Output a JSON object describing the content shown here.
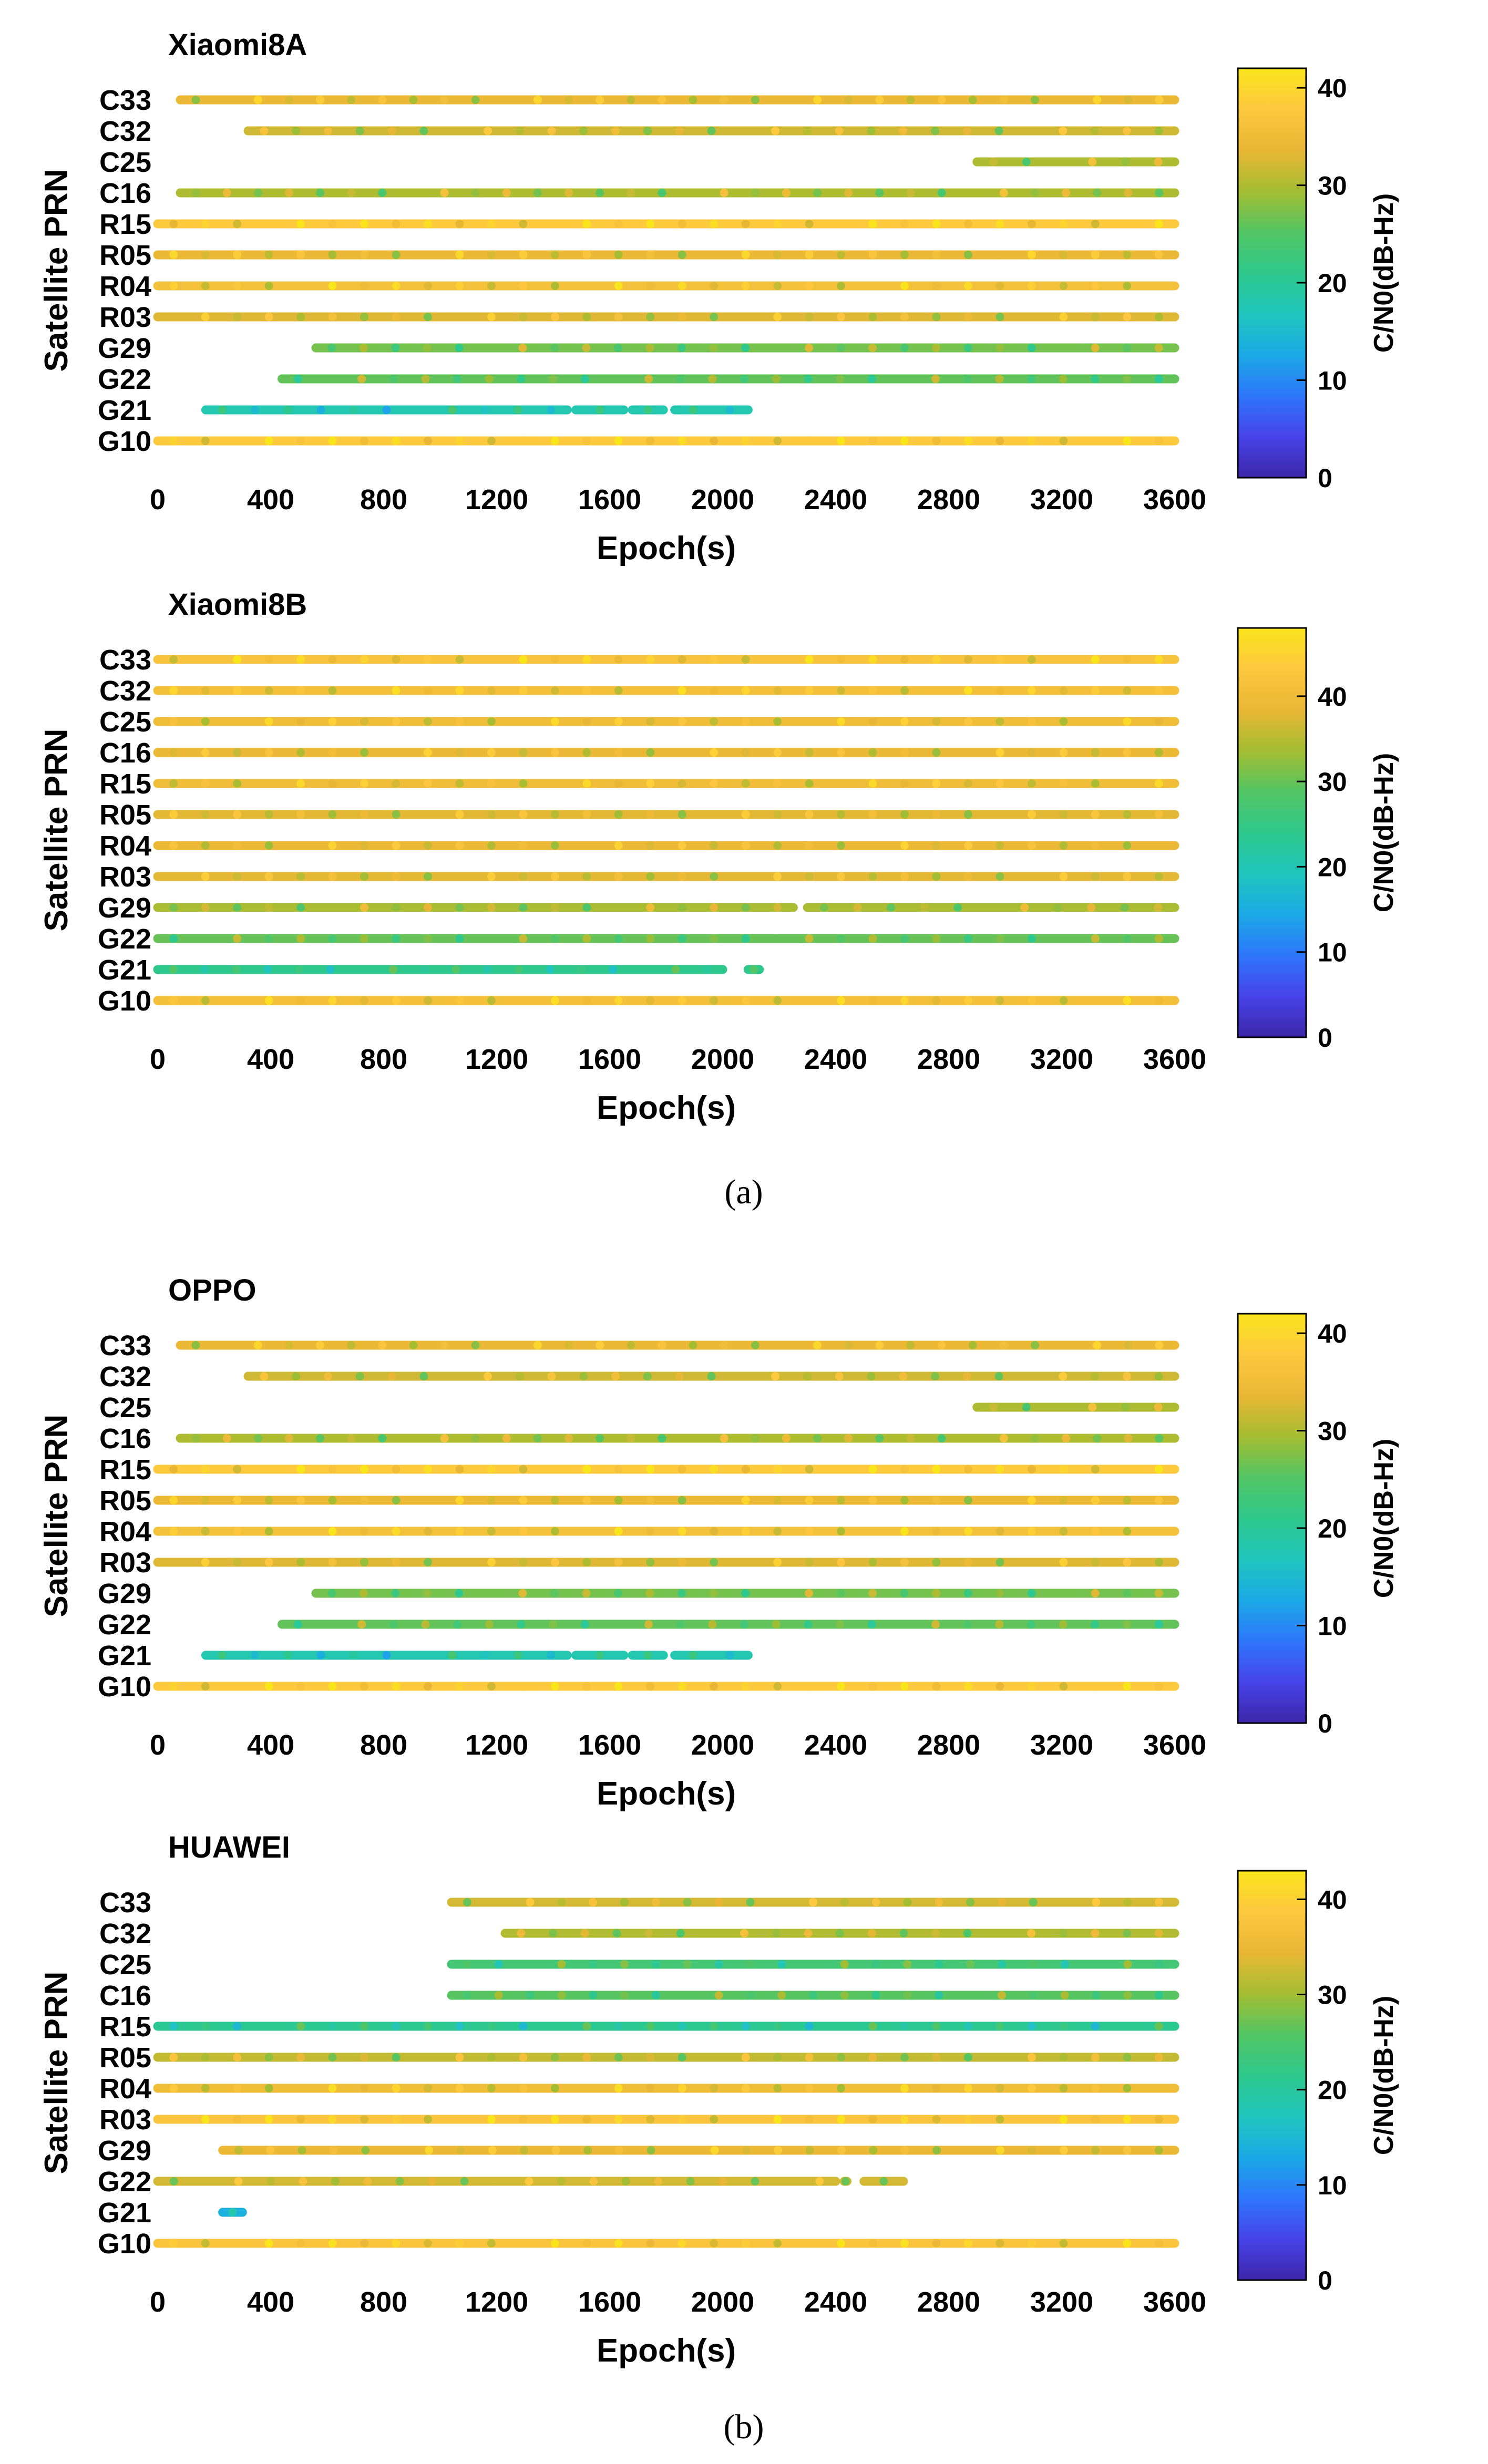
{
  "figure": {
    "captions": [
      "(a)",
      "(b)"
    ],
    "caption_letters": [
      "a",
      "b"
    ]
  },
  "colormap": [
    "#3d26a8",
    "#4743e9",
    "#2e76fa",
    "#1ba9e6",
    "#20c6bd",
    "#2ec88c",
    "#53c564",
    "#a4bd32",
    "#e9b735",
    "#fdc83f",
    "#f9e51c"
  ],
  "chart_data": [
    {
      "type": "scatter",
      "title": "Xiaomi8A",
      "xlabel": "Epoch(s)",
      "ylabel": "Satellite PRN",
      "colorbar_label": "C/N0(dB-Hz)",
      "xlim": [
        0,
        3600
      ],
      "xticks": [
        0,
        400,
        800,
        1200,
        1600,
        2000,
        2400,
        2800,
        3200,
        3600
      ],
      "cb_range": [
        0,
        42
      ],
      "cb_ticks": [
        0,
        10,
        20,
        30,
        40
      ],
      "categories": [
        "G10",
        "G21",
        "G22",
        "G29",
        "R03",
        "R04",
        "R05",
        "R15",
        "C16",
        "C25",
        "C32",
        "C33"
      ],
      "series": [
        {
          "name": "C33",
          "segments": [
            [
              80,
              3600
            ]
          ],
          "cn0": 34
        },
        {
          "name": "C32",
          "segments": [
            [
              320,
              3600
            ]
          ],
          "cn0": 32
        },
        {
          "name": "C25",
          "segments": [
            [
              2900,
              3600
            ]
          ],
          "cn0": 30
        },
        {
          "name": "C16",
          "segments": [
            [
              80,
              3600
            ]
          ],
          "cn0": 30
        },
        {
          "name": "R15",
          "segments": [
            [
              0,
              3600
            ]
          ],
          "cn0": 38
        },
        {
          "name": "R05",
          "segments": [
            [
              0,
              3600
            ]
          ],
          "cn0": 34
        },
        {
          "name": "R04",
          "segments": [
            [
              0,
              3600
            ]
          ],
          "cn0": 36
        },
        {
          "name": "R03",
          "segments": [
            [
              0,
              3600
            ]
          ],
          "cn0": 33
        },
        {
          "name": "G29",
          "segments": [
            [
              560,
              3600
            ]
          ],
          "cn0": 27
        },
        {
          "name": "G22",
          "segments": [
            [
              440,
              3600
            ]
          ],
          "cn0": 26
        },
        {
          "name": "G21",
          "segments": [
            [
              170,
              1450
            ],
            [
              1480,
              1650
            ],
            [
              1680,
              1790
            ],
            [
              1830,
              2090
            ]
          ],
          "cn0": 18
        },
        {
          "name": "G10",
          "segments": [
            [
              0,
              3600
            ]
          ],
          "cn0": 38
        }
      ]
    },
    {
      "type": "scatter",
      "title": "Xiaomi8B",
      "xlabel": "Epoch(s)",
      "ylabel": "Satellite PRN",
      "colorbar_label": "C/N0(dB-Hz)",
      "xlim": [
        0,
        3600
      ],
      "xticks": [
        0,
        400,
        800,
        1200,
        1600,
        2000,
        2400,
        2800,
        3200,
        3600
      ],
      "cb_range": [
        0,
        48
      ],
      "cb_ticks": [
        0,
        10,
        20,
        30,
        40
      ],
      "categories": [
        "G10",
        "G21",
        "G22",
        "G29",
        "R03",
        "R04",
        "R05",
        "R15",
        "C16",
        "C25",
        "C32",
        "C33"
      ],
      "series": [
        {
          "name": "C33",
          "segments": [
            [
              0,
              3600
            ]
          ],
          "cn0": 42
        },
        {
          "name": "C32",
          "segments": [
            [
              0,
              3600
            ]
          ],
          "cn0": 41
        },
        {
          "name": "C25",
          "segments": [
            [
              0,
              3600
            ]
          ],
          "cn0": 40
        },
        {
          "name": "C16",
          "segments": [
            [
              0,
              3600
            ]
          ],
          "cn0": 39
        },
        {
          "name": "R15",
          "segments": [
            [
              0,
              3600
            ]
          ],
          "cn0": 40
        },
        {
          "name": "R05",
          "segments": [
            [
              0,
              3600
            ]
          ],
          "cn0": 38
        },
        {
          "name": "R04",
          "segments": [
            [
              0,
              3600
            ]
          ],
          "cn0": 39
        },
        {
          "name": "R03",
          "segments": [
            [
              0,
              3600
            ]
          ],
          "cn0": 38
        },
        {
          "name": "G29",
          "segments": [
            [
              0,
              2250
            ],
            [
              2300,
              3600
            ]
          ],
          "cn0": 34
        },
        {
          "name": "G22",
          "segments": [
            [
              0,
              3600
            ]
          ],
          "cn0": 30
        },
        {
          "name": "G21",
          "segments": [
            [
              0,
              2000
            ],
            [
              2090,
              2130
            ]
          ],
          "cn0": 24
        },
        {
          "name": "G10",
          "segments": [
            [
              0,
              3600
            ]
          ],
          "cn0": 41
        }
      ]
    },
    {
      "type": "scatter",
      "title": "OPPO",
      "xlabel": "Epoch(s)",
      "ylabel": "Satellite PRN",
      "colorbar_label": "C/N0(dB-Hz)",
      "xlim": [
        0,
        3600
      ],
      "xticks": [
        0,
        400,
        800,
        1200,
        1600,
        2000,
        2400,
        2800,
        3200,
        3600
      ],
      "cb_range": [
        0,
        42
      ],
      "cb_ticks": [
        0,
        10,
        20,
        30,
        40
      ],
      "categories": [
        "G10",
        "G21",
        "G22",
        "G29",
        "R03",
        "R04",
        "R05",
        "R15",
        "C16",
        "C25",
        "C32",
        "C33"
      ],
      "series": [
        {
          "name": "C33",
          "segments": [
            [
              80,
              3600
            ]
          ],
          "cn0": 34
        },
        {
          "name": "C32",
          "segments": [
            [
              320,
              3600
            ]
          ],
          "cn0": 32
        },
        {
          "name": "C25",
          "segments": [
            [
              2900,
              3600
            ]
          ],
          "cn0": 30
        },
        {
          "name": "C16",
          "segments": [
            [
              80,
              3600
            ]
          ],
          "cn0": 30
        },
        {
          "name": "R15",
          "segments": [
            [
              0,
              3600
            ]
          ],
          "cn0": 38
        },
        {
          "name": "R05",
          "segments": [
            [
              0,
              3600
            ]
          ],
          "cn0": 34
        },
        {
          "name": "R04",
          "segments": [
            [
              0,
              3600
            ]
          ],
          "cn0": 36
        },
        {
          "name": "R03",
          "segments": [
            [
              0,
              3600
            ]
          ],
          "cn0": 33
        },
        {
          "name": "G29",
          "segments": [
            [
              560,
              3600
            ]
          ],
          "cn0": 27
        },
        {
          "name": "G22",
          "segments": [
            [
              440,
              3600
            ]
          ],
          "cn0": 26
        },
        {
          "name": "G21",
          "segments": [
            [
              170,
              1450
            ],
            [
              1480,
              1650
            ],
            [
              1680,
              1790
            ],
            [
              1830,
              2090
            ]
          ],
          "cn0": 18
        },
        {
          "name": "G10",
          "segments": [
            [
              0,
              3600
            ]
          ],
          "cn0": 38
        }
      ]
    },
    {
      "type": "scatter",
      "title": "HUAWEI",
      "xlabel": "Epoch(s)",
      "ylabel": "Satellite PRN",
      "colorbar_label": "C/N0(dB-Hz)",
      "xlim": [
        0,
        3600
      ],
      "xticks": [
        0,
        400,
        800,
        1200,
        1600,
        2000,
        2400,
        2800,
        3200,
        3600
      ],
      "cb_range": [
        0,
        43
      ],
      "cb_ticks": [
        0,
        10,
        20,
        30,
        40
      ],
      "categories": [
        "G10",
        "G21",
        "G22",
        "G29",
        "R03",
        "R04",
        "R05",
        "R15",
        "C16",
        "C25",
        "C32",
        "C33"
      ],
      "series": [
        {
          "name": "C33",
          "segments": [
            [
              1040,
              3600
            ]
          ],
          "cn0": 33
        },
        {
          "name": "C32",
          "segments": [
            [
              1230,
              3600
            ]
          ],
          "cn0": 31
        },
        {
          "name": "C25",
          "segments": [
            [
              1040,
              3600
            ]
          ],
          "cn0": 24
        },
        {
          "name": "C16",
          "segments": [
            [
              1040,
              3600
            ]
          ],
          "cn0": 26
        },
        {
          "name": "R15",
          "segments": [
            [
              0,
              3600
            ]
          ],
          "cn0": 21
        },
        {
          "name": "R05",
          "segments": [
            [
              0,
              3600
            ]
          ],
          "cn0": 32
        },
        {
          "name": "R04",
          "segments": [
            [
              0,
              3600
            ]
          ],
          "cn0": 36
        },
        {
          "name": "R03",
          "segments": [
            [
              0,
              3600
            ]
          ],
          "cn0": 38
        },
        {
          "name": "G29",
          "segments": [
            [
              230,
              3600
            ]
          ],
          "cn0": 35
        },
        {
          "name": "G22",
          "segments": [
            [
              0,
              2400
            ],
            [
              2430,
              2440
            ],
            [
              2500,
              2640
            ]
          ],
          "cn0": 33
        },
        {
          "name": "G21",
          "segments": [
            [
              230,
              300
            ]
          ],
          "cn0": 14
        },
        {
          "name": "G10",
          "segments": [
            [
              0,
              3600
            ]
          ],
          "cn0": 38
        }
      ]
    }
  ]
}
